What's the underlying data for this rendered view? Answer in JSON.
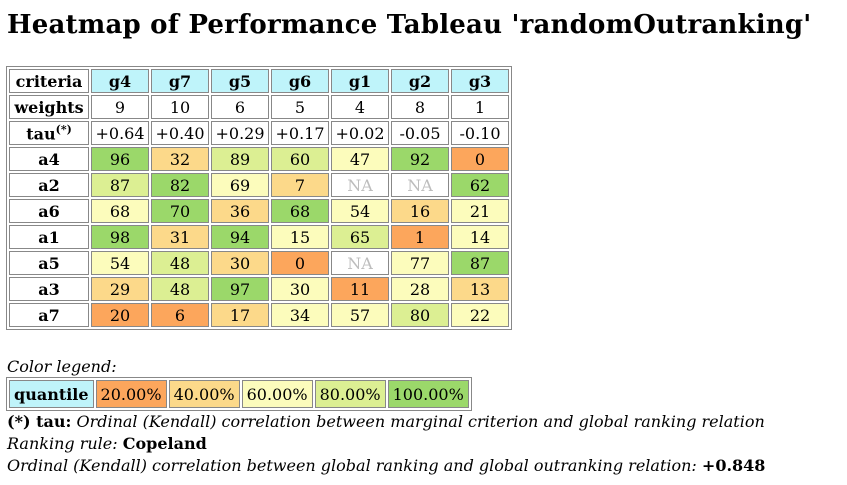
{
  "title": "Heatmap of Performance Tableau 'randomOutranking'",
  "table": {
    "criteria_label": "criteria",
    "weights_label": "weights",
    "tau_label": "tau",
    "tau_sup": "(*)",
    "criteria": [
      "g4",
      "g7",
      "g5",
      "g6",
      "g1",
      "g2",
      "g3"
    ],
    "weights": [
      "9",
      "10",
      "6",
      "5",
      "4",
      "8",
      "1"
    ],
    "tau": [
      "+0.64",
      "+0.40",
      "+0.29",
      "+0.17",
      "+0.02",
      "-0.05",
      "-0.10"
    ],
    "rows": [
      {
        "name": "a4",
        "values": [
          "96",
          "32",
          "89",
          "60",
          "47",
          "92",
          "0"
        ]
      },
      {
        "name": "a2",
        "values": [
          "87",
          "82",
          "69",
          "7",
          "NA",
          "NA",
          "62"
        ]
      },
      {
        "name": "a6",
        "values": [
          "68",
          "70",
          "36",
          "68",
          "54",
          "16",
          "21"
        ]
      },
      {
        "name": "a1",
        "values": [
          "98",
          "31",
          "94",
          "15",
          "65",
          "1",
          "14"
        ]
      },
      {
        "name": "a5",
        "values": [
          "54",
          "48",
          "30",
          "0",
          "NA",
          "77",
          "87"
        ]
      },
      {
        "name": "a3",
        "values": [
          "29",
          "48",
          "97",
          "30",
          "11",
          "28",
          "13"
        ]
      },
      {
        "name": "a7",
        "values": [
          "20",
          "6",
          "17",
          "34",
          "57",
          "80",
          "22"
        ]
      }
    ],
    "quantile_classes": [
      [
        5,
        2,
        4,
        4,
        3,
        5,
        1
      ],
      [
        4,
        5,
        3,
        2,
        0,
        0,
        5
      ],
      [
        3,
        5,
        2,
        5,
        3,
        2,
        3
      ],
      [
        5,
        2,
        5,
        3,
        4,
        1,
        3
      ],
      [
        3,
        4,
        2,
        1,
        0,
        3,
        5
      ],
      [
        2,
        4,
        5,
        3,
        1,
        3,
        2
      ],
      [
        1,
        1,
        2,
        3,
        3,
        4,
        3
      ]
    ]
  },
  "legend": {
    "title": "Color legend:",
    "label": "quantile",
    "items": [
      "20.00%",
      "40.00%",
      "60.00%",
      "80.00%",
      "100.00%"
    ]
  },
  "notes": {
    "tau_marker": "(*) tau:",
    "tau_text": " Ordinal (Kendall) correlation between marginal criterion and global ranking relation",
    "ranking_rule_label": "Ranking rule: ",
    "ranking_rule_value": "Copeland",
    "correlation_text": "Ordinal (Kendall) correlation between global ranking and global outranking relation: ",
    "correlation_value": "+0.848"
  },
  "colors": {
    "header_bg": "#bff4fa",
    "q1": "#fca65c",
    "q2": "#fcd98a",
    "q3": "#fcfcbc",
    "q4": "#dcef93",
    "q5": "#9bd86a",
    "na_text": "#bdbdbd"
  }
}
